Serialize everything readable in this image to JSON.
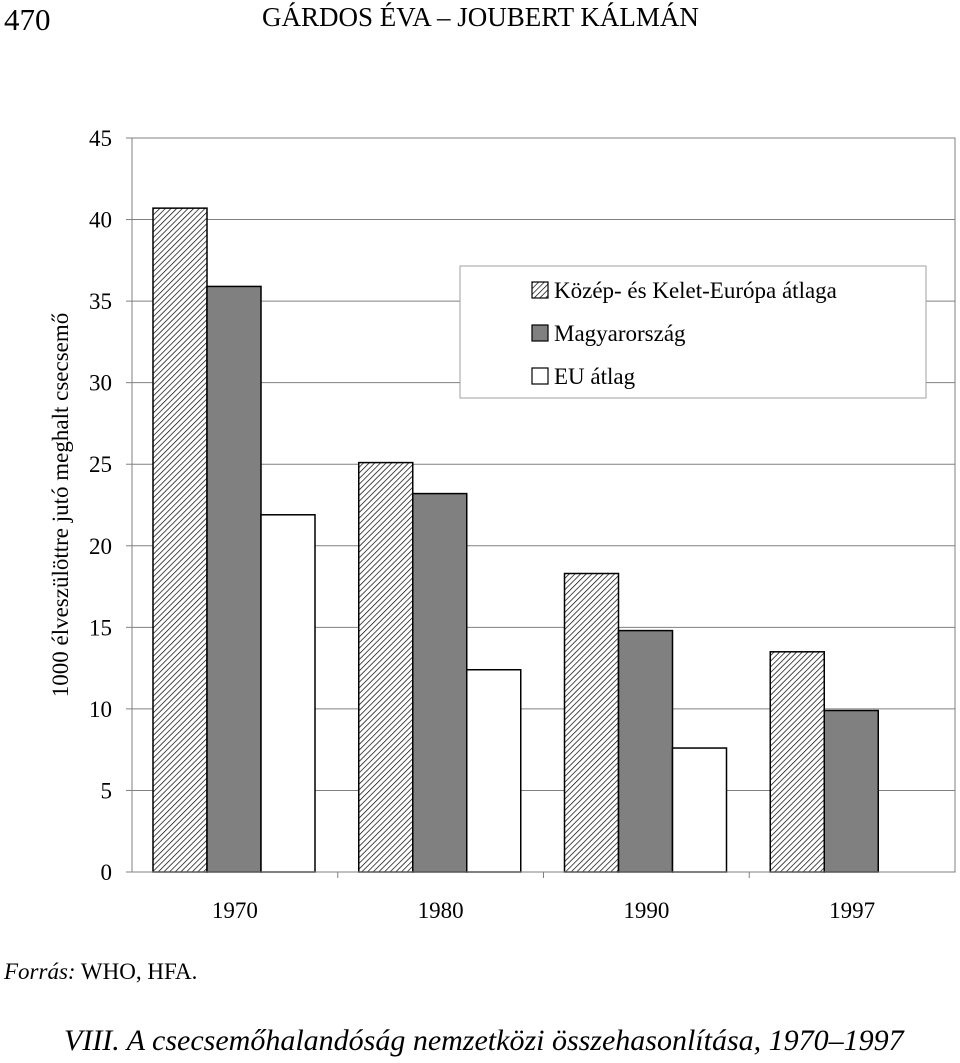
{
  "header": {
    "page_number": "470",
    "running_title": "GÁRDOS ÉVA – JOUBERT KÁLMÁN"
  },
  "chart_data": {
    "type": "bar",
    "title": "",
    "xlabel": "",
    "ylabel": "1000 élveszülöttre jutó meghalt csecsemő",
    "categories": [
      "1970",
      "1980",
      "1990",
      "1997"
    ],
    "ylim": [
      0,
      45
    ],
    "yticks": [
      0,
      5,
      10,
      15,
      20,
      25,
      30,
      35,
      40,
      45
    ],
    "grid": true,
    "legend_position": "top-right",
    "series": [
      {
        "name": "Közép- és Kelet-Európa átlaga",
        "values": [
          40.7,
          25.1,
          18.3,
          13.5
        ],
        "fill": "hatched",
        "color": "#ffffff"
      },
      {
        "name": "Magyarország",
        "values": [
          35.9,
          23.2,
          14.8,
          9.9
        ],
        "fill": "solid",
        "color": "#808080"
      },
      {
        "name": "EU átlag",
        "values": [
          21.9,
          12.4,
          7.6,
          null
        ],
        "fill": "solid",
        "color": "#ffffff"
      }
    ]
  },
  "footer": {
    "source_label": "Forrás:",
    "source_text": "WHO, HFA.",
    "caption": "VIII. A csecsemőhalandóság nemzetközi összehasonlítása, 1970–1997"
  }
}
